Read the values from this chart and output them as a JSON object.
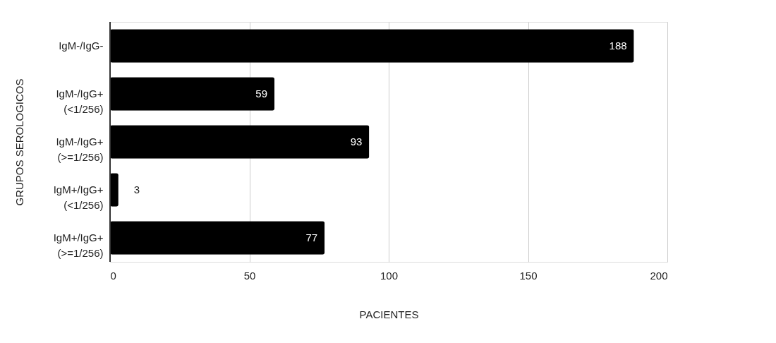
{
  "chart_data": {
    "type": "bar",
    "orientation": "horizontal",
    "xlabel": "PACIENTES",
    "ylabel": "GRUPOS SEROLOGICOS",
    "categories": [
      "IgM-/IgG-",
      "IgM-/IgG+\n(<1/256)",
      "IgM-/IgG+\n(>=1/256)",
      "IgM+/IgG+\n(<1/256)",
      "IgM+/IgG+\n(>=1/256)"
    ],
    "values": [
      188,
      59,
      93,
      3,
      77
    ],
    "color": "#000000",
    "xlim": [
      0,
      200
    ],
    "xticks": [
      0,
      50,
      100,
      150,
      200
    ],
    "grid": "x",
    "data_labels": true
  }
}
